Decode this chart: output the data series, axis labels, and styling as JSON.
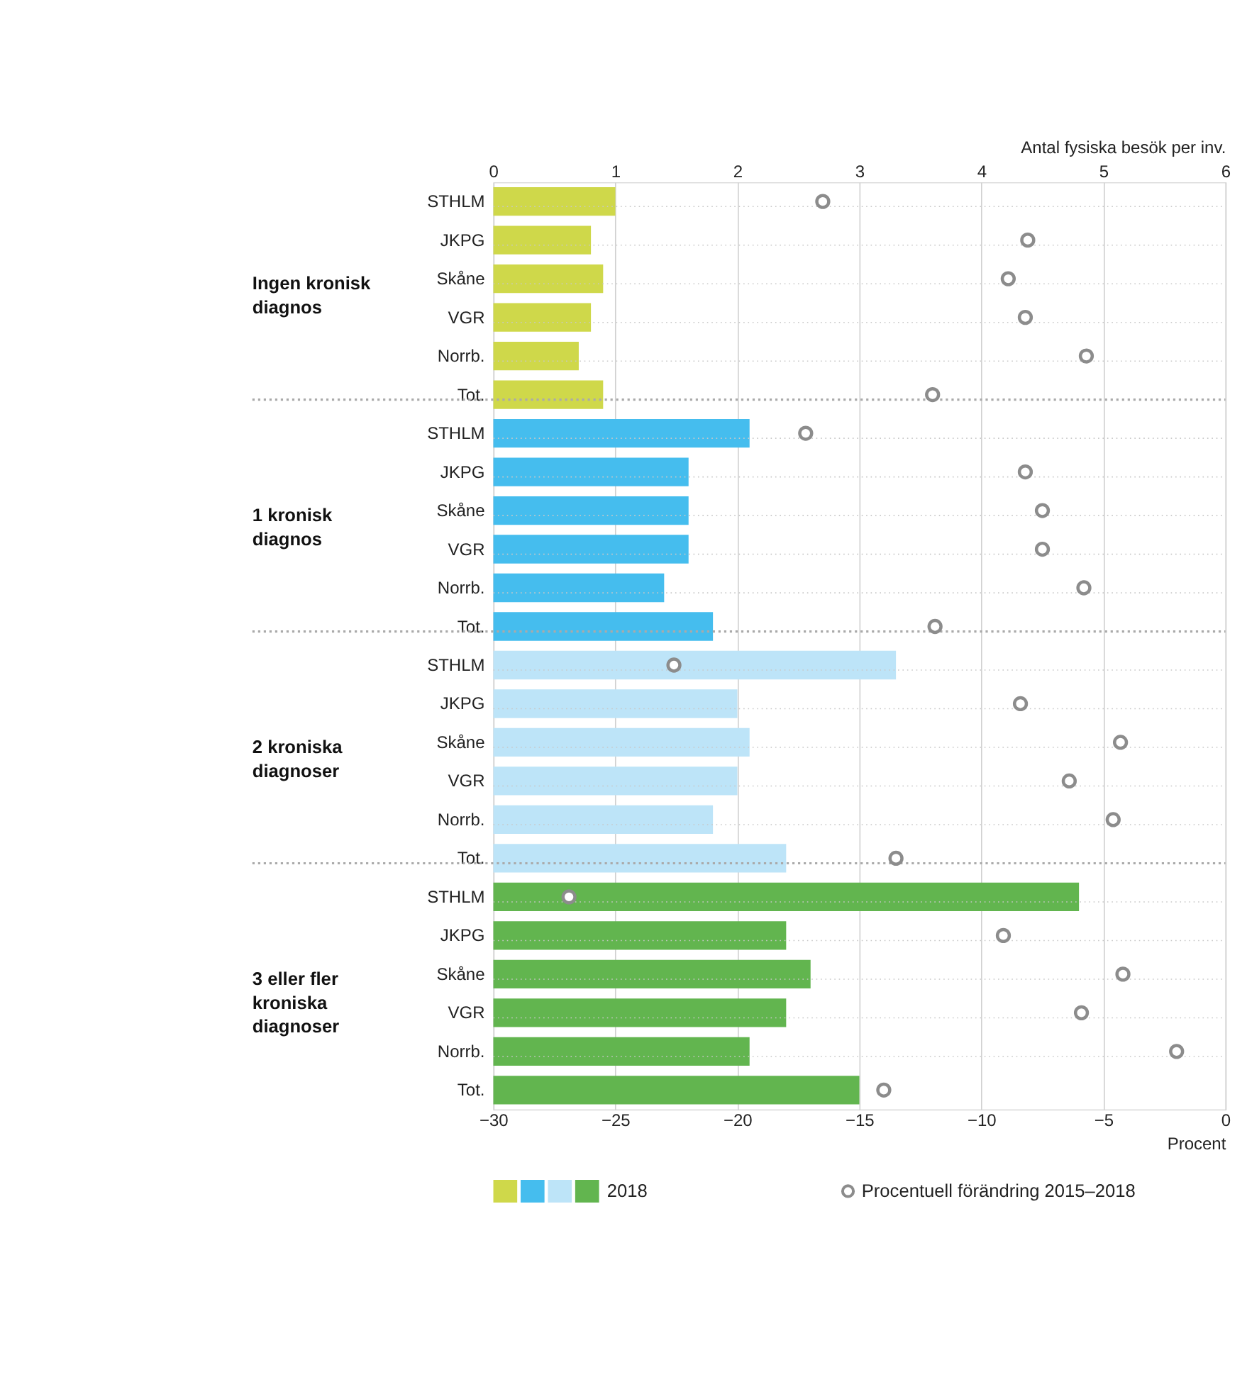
{
  "chart_data": {
    "type": "bar",
    "orientation": "horizontal",
    "categories": [
      "STHLM",
      "JKPG",
      "Skåne",
      "VGR",
      "Norrb.",
      "Tot.",
      "STHLM",
      "JKPG",
      "Skåne",
      "VGR",
      "Norrb.",
      "Tot.",
      "STHLM",
      "JKPG",
      "Skåne",
      "VGR",
      "Norrb.",
      "Tot.",
      "STHLM",
      "JKPG",
      "Skåne",
      "VGR",
      "Norrb.",
      "Tot."
    ],
    "series": [
      {
        "name": "2018",
        "axis": "x2",
        "colors": [
          "#cfd84a",
          "#cfd84a",
          "#cfd84a",
          "#cfd84a",
          "#cfd84a",
          "#cfd84a",
          "#45bdee",
          "#45bdee",
          "#45bdee",
          "#45bdee",
          "#45bdee",
          "#45bdee",
          "#bde4f8",
          "#bde4f8",
          "#bde4f8",
          "#bde4f8",
          "#bde4f8",
          "#bde4f8",
          "#62b54f",
          "#62b54f",
          "#62b54f",
          "#62b54f",
          "#62b54f",
          "#62b54f"
        ],
        "values": [
          1.0,
          0.8,
          0.9,
          0.8,
          0.7,
          0.9,
          2.1,
          1.6,
          1.6,
          1.6,
          1.4,
          1.8,
          3.3,
          2.0,
          2.1,
          2.0,
          1.8,
          2.4,
          4.8,
          2.4,
          2.6,
          2.4,
          2.1,
          3.0
        ]
      },
      {
        "name": "Procentuell förändring 2015–2018",
        "type": "scatter",
        "color": "#8c8c8c",
        "marker": "circle",
        "values": [
          -16.5,
          -8.1,
          -8.9,
          -8.2,
          -5.7,
          -12.0,
          -17.2,
          -8.2,
          -7.5,
          -7.5,
          -5.8,
          -11.9,
          -22.6,
          -8.4,
          -4.3,
          -6.4,
          -4.6,
          -13.5,
          -26.9,
          -9.1,
          -4.2,
          -5.9,
          -2.0,
          -14.0
        ]
      }
    ],
    "xlim": [
      -30,
      0
    ],
    "xticks": [
      -30,
      -25,
      -20,
      -15,
      -10,
      -5,
      0
    ],
    "xlabel": "Procent",
    "x2lim": [
      0,
      6
    ],
    "x2ticks": [
      0,
      1,
      2,
      3,
      4,
      5,
      6
    ],
    "x2label": "Antal fysiska besök per inv.",
    "annotations": [
      "Ingen kronisk diagnos",
      "1 kronisk diagnos",
      "2 kroniska diagnoser",
      "3 eller fler kroniska diagnoser"
    ],
    "grid": true,
    "legend": "bottom"
  }
}
